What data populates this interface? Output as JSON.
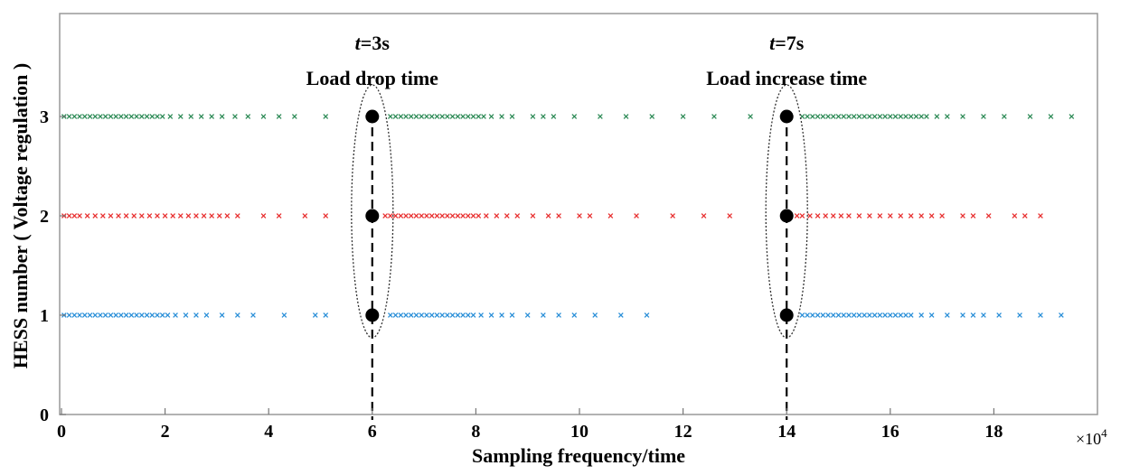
{
  "chart_data": {
    "type": "scatter",
    "xlabel": "Sampling frequency/time",
    "ylabel": "HESS number ( Voltage regulation )",
    "x_multiplier": "×10",
    "x_multiplier_exp": "4",
    "xlim": [
      0,
      20
    ],
    "ylim": [
      0,
      3.7
    ],
    "x_ticks": [
      0,
      2,
      4,
      6,
      8,
      10,
      12,
      14,
      16,
      18
    ],
    "x_tick_labels": [
      "0",
      "2",
      "4",
      "6",
      "8",
      "10",
      "12",
      "14",
      "16",
      "18"
    ],
    "y_ticks": [
      0,
      1,
      2,
      3
    ],
    "y_tick_labels": [
      "0",
      "1",
      "2",
      "3"
    ],
    "grid": false,
    "series": [
      {
        "color": "#2e8b57",
        "y": 3,
        "x": [
          0.05,
          0.15,
          0.25,
          0.35,
          0.45,
          0.55,
          0.65,
          0.75,
          0.85,
          0.95,
          1.05,
          1.15,
          1.25,
          1.35,
          1.45,
          1.55,
          1.65,
          1.75,
          1.85,
          1.95,
          2.1,
          2.3,
          2.5,
          2.7,
          2.9,
          3.1,
          3.35,
          3.6,
          3.9,
          4.2,
          4.5,
          5.1,
          6.0,
          6.35,
          6.45,
          6.55,
          6.65,
          6.75,
          6.85,
          6.95,
          7.05,
          7.15,
          7.25,
          7.35,
          7.45,
          7.55,
          7.65,
          7.75,
          7.85,
          7.95,
          8.05,
          8.15,
          8.3,
          8.5,
          8.7,
          9.1,
          9.3,
          9.5,
          9.9,
          10.4,
          10.9,
          11.4,
          12.0,
          12.6,
          13.3,
          14.0,
          14.3,
          14.4,
          14.5,
          14.6,
          14.7,
          14.8,
          14.9,
          15.0,
          15.1,
          15.2,
          15.3,
          15.4,
          15.5,
          15.6,
          15.7,
          15.8,
          15.9,
          16.0,
          16.1,
          16.2,
          16.3,
          16.4,
          16.5,
          16.6,
          16.7,
          16.9,
          17.1,
          17.4,
          17.8,
          18.2,
          18.7,
          19.1,
          19.5
        ]
      },
      {
        "color": "#e83030",
        "y": 2,
        "x": [
          0.05,
          0.15,
          0.25,
          0.35,
          0.5,
          0.65,
          0.8,
          0.95,
          1.1,
          1.25,
          1.4,
          1.55,
          1.7,
          1.85,
          2.0,
          2.15,
          2.3,
          2.45,
          2.6,
          2.75,
          2.9,
          3.05,
          3.2,
          3.4,
          3.9,
          4.2,
          4.7,
          5.1,
          6.0,
          6.25,
          6.35,
          6.45,
          6.55,
          6.65,
          6.75,
          6.85,
          6.95,
          7.05,
          7.15,
          7.25,
          7.35,
          7.45,
          7.55,
          7.65,
          7.75,
          7.85,
          7.95,
          8.05,
          8.2,
          8.4,
          8.6,
          8.8,
          9.1,
          9.4,
          9.6,
          10.0,
          10.2,
          10.6,
          11.1,
          11.8,
          12.4,
          12.9,
          14.0,
          14.2,
          14.3,
          14.45,
          14.6,
          14.75,
          14.9,
          15.05,
          15.2,
          15.4,
          15.6,
          15.8,
          16.0,
          16.2,
          16.4,
          16.6,
          16.8,
          17.0,
          17.4,
          17.6,
          17.9,
          18.4,
          18.6,
          18.9
        ]
      },
      {
        "color": "#2a8fd8",
        "y": 1,
        "x": [
          0.05,
          0.15,
          0.25,
          0.35,
          0.45,
          0.55,
          0.65,
          0.75,
          0.85,
          0.95,
          1.05,
          1.15,
          1.25,
          1.35,
          1.45,
          1.55,
          1.65,
          1.75,
          1.85,
          1.95,
          2.05,
          2.2,
          2.4,
          2.6,
          2.8,
          3.1,
          3.4,
          3.7,
          4.3,
          4.9,
          5.1,
          6.0,
          6.35,
          6.45,
          6.55,
          6.65,
          6.75,
          6.85,
          6.95,
          7.05,
          7.15,
          7.25,
          7.35,
          7.45,
          7.55,
          7.65,
          7.75,
          7.85,
          7.95,
          8.1,
          8.3,
          8.5,
          8.7,
          9.0,
          9.3,
          9.6,
          9.9,
          10.3,
          10.8,
          11.3,
          14.0,
          14.3,
          14.4,
          14.5,
          14.6,
          14.7,
          14.8,
          14.9,
          15.0,
          15.1,
          15.2,
          15.3,
          15.4,
          15.5,
          15.6,
          15.7,
          15.8,
          15.9,
          16.0,
          16.1,
          16.2,
          16.3,
          16.4,
          16.6,
          16.8,
          17.1,
          17.4,
          17.6,
          17.8,
          18.1,
          18.5,
          18.9,
          19.3
        ]
      }
    ],
    "events": [
      {
        "x": 6,
        "points_y": [
          1,
          2,
          3
        ],
        "label_italic": "t",
        "label_rest": "=3s",
        "label_line2": "Load drop time"
      },
      {
        "x": 14,
        "points_y": [
          1,
          2,
          3
        ],
        "label_italic": "t",
        "label_rest": "=7s",
        "label_line2": "Load  increase time"
      }
    ]
  }
}
